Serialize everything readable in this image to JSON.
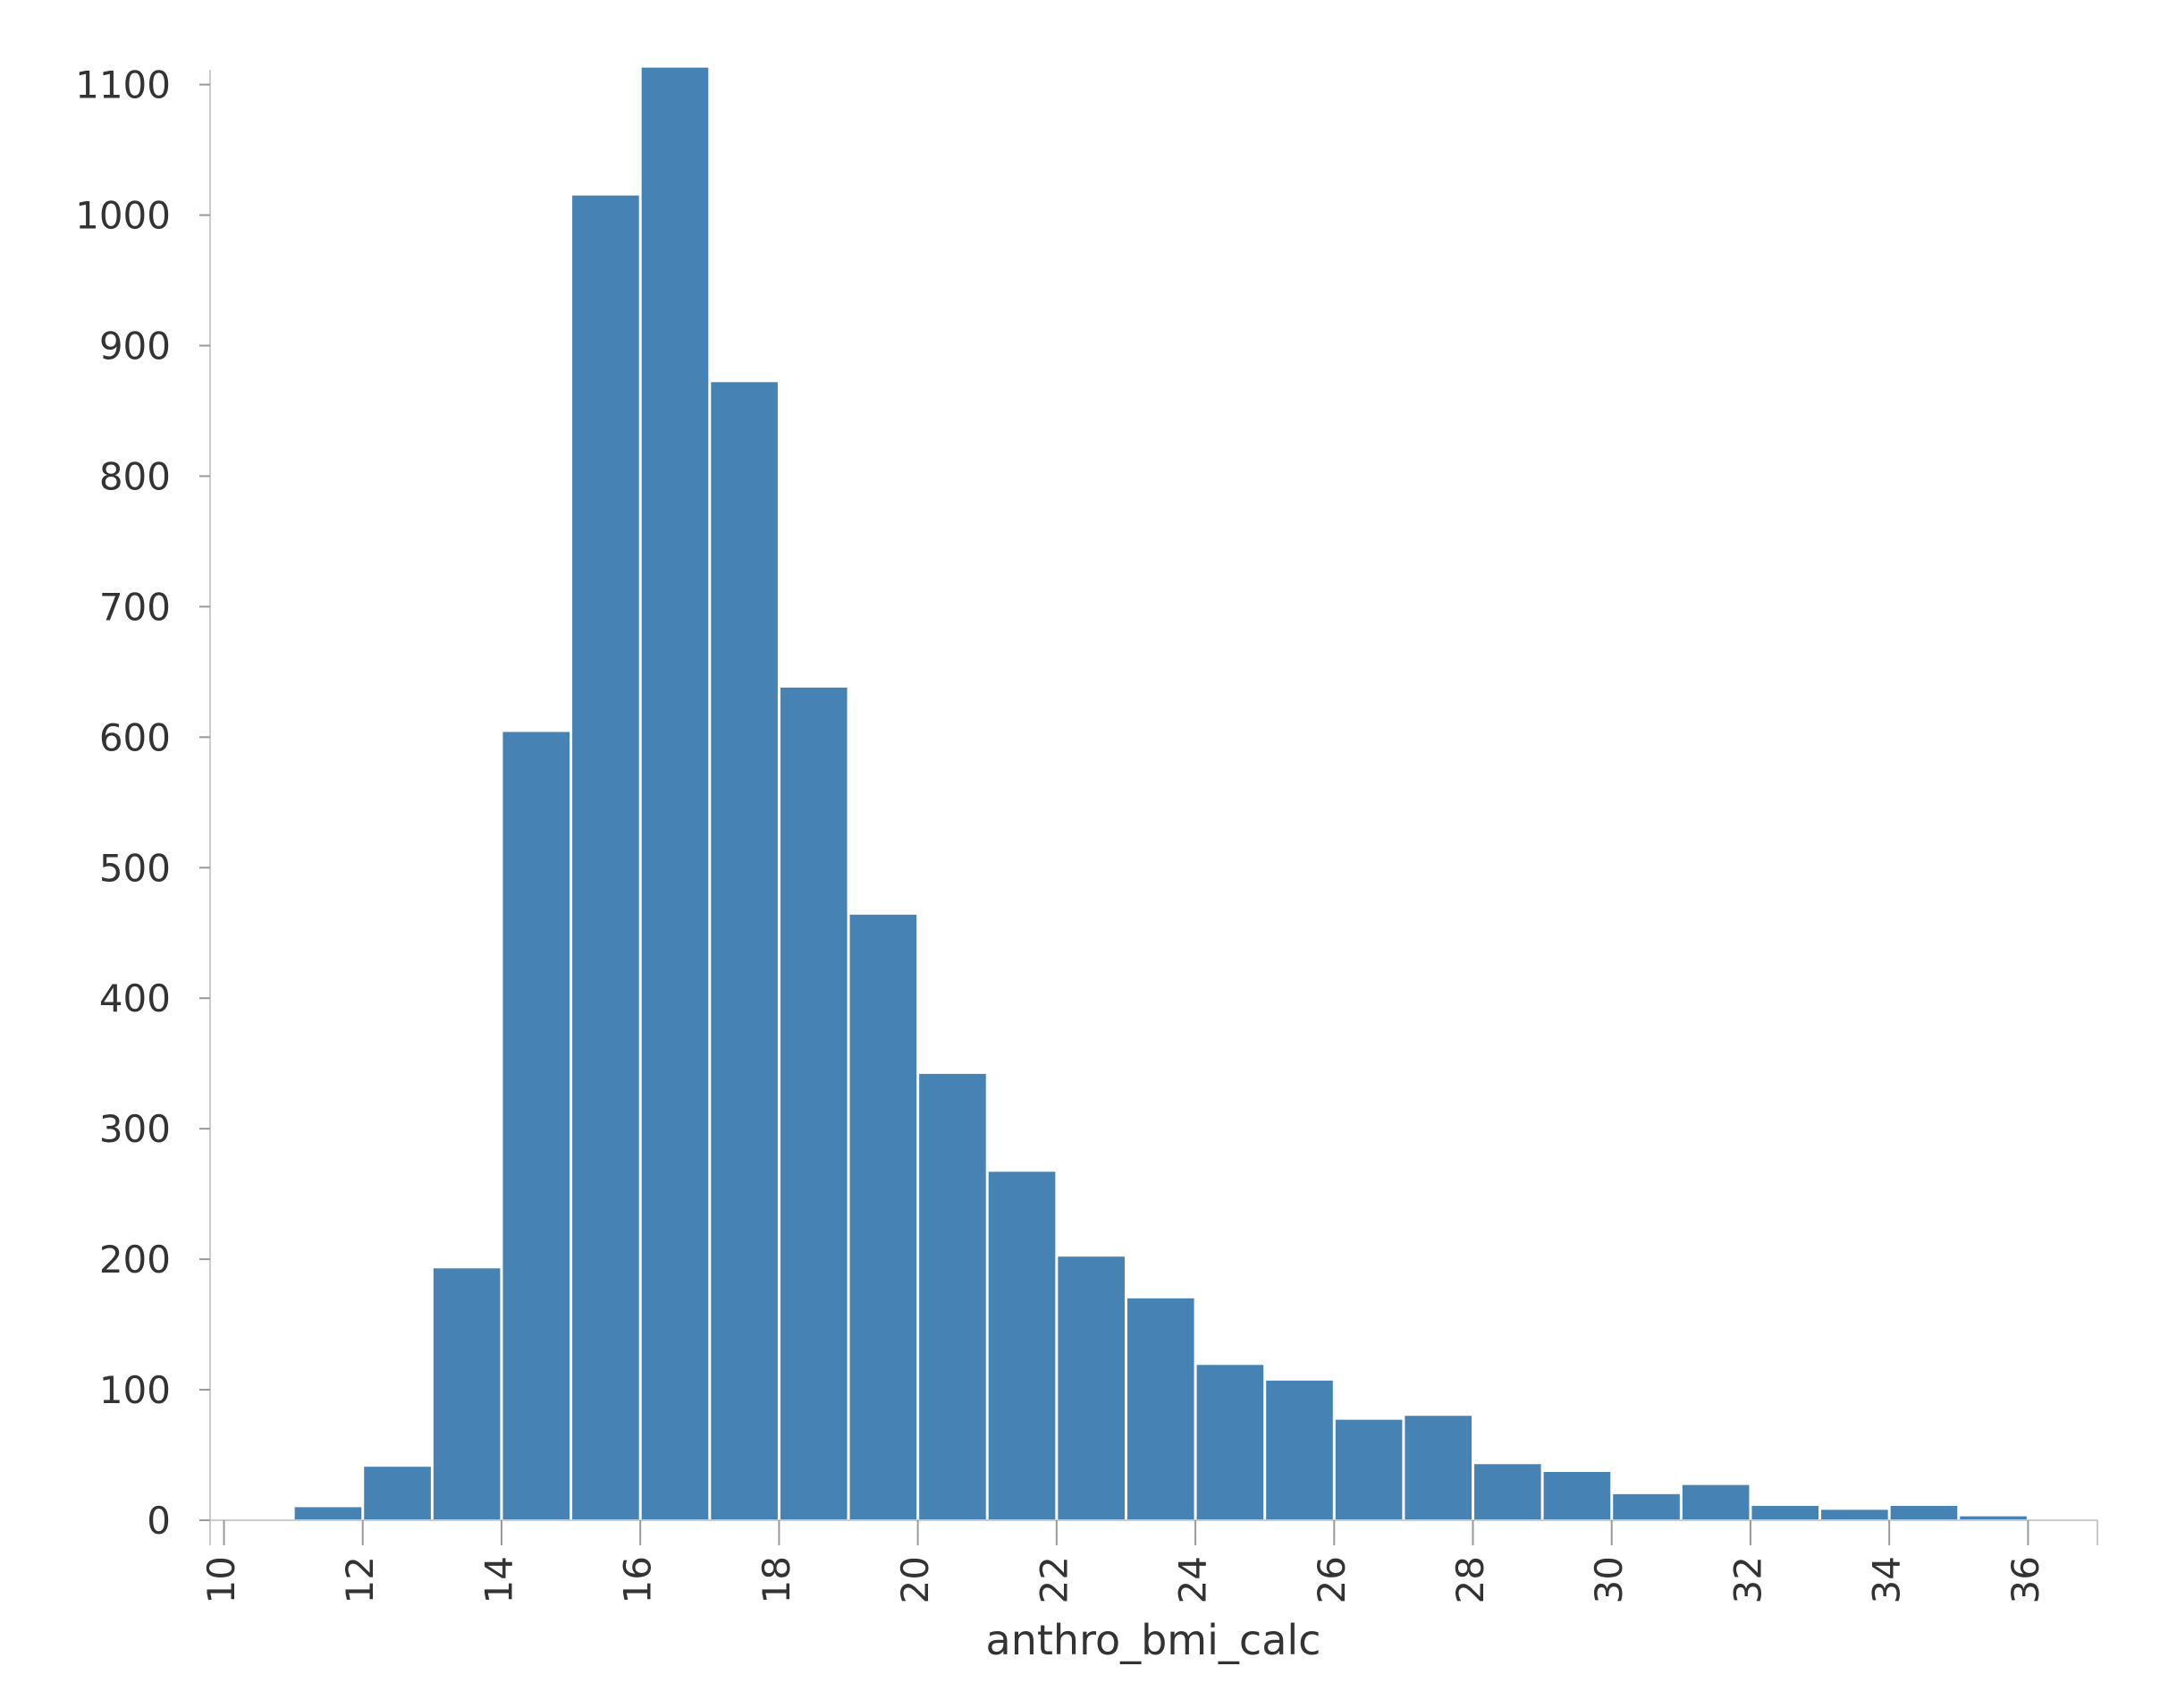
{
  "chart_data": {
    "type": "bar",
    "subtype": "histogram",
    "xlabel": "anthro_bmi_calc",
    "ylabel": "",
    "xlim": [
      9.8,
      37
    ],
    "ylim": [
      0,
      1110
    ],
    "x_ticks": [
      10,
      12,
      14,
      16,
      18,
      20,
      22,
      24,
      26,
      28,
      30,
      32,
      34,
      36
    ],
    "y_ticks": [
      0,
      100,
      200,
      300,
      400,
      500,
      600,
      700,
      800,
      900,
      1000,
      1100
    ],
    "grid": false,
    "bar_color": "#4682b4",
    "bins": [
      {
        "x0": 11,
        "x1": 12,
        "value": 10
      },
      {
        "x0": 12,
        "x1": 13,
        "value": 41
      },
      {
        "x0": 13,
        "x1": 14,
        "value": 193
      },
      {
        "x0": 14,
        "x1": 15,
        "value": 604
      },
      {
        "x0": 15,
        "x1": 16,
        "value": 1015
      },
      {
        "x0": 16,
        "x1": 17,
        "value": 1113
      },
      {
        "x0": 17,
        "x1": 18,
        "value": 872
      },
      {
        "x0": 18,
        "x1": 19,
        "value": 638
      },
      {
        "x0": 19,
        "x1": 20,
        "value": 464
      },
      {
        "x0": 20,
        "x1": 21,
        "value": 342
      },
      {
        "x0": 21,
        "x1": 22,
        "value": 267
      },
      {
        "x0": 22,
        "x1": 23,
        "value": 202
      },
      {
        "x0": 23,
        "x1": 24,
        "value": 170
      },
      {
        "x0": 24,
        "x1": 25,
        "value": 119
      },
      {
        "x0": 25,
        "x1": 26,
        "value": 107
      },
      {
        "x0": 26,
        "x1": 27,
        "value": 77
      },
      {
        "x0": 27,
        "x1": 28,
        "value": 80
      },
      {
        "x0": 28,
        "x1": 29,
        "value": 43
      },
      {
        "x0": 29,
        "x1": 30,
        "value": 37
      },
      {
        "x0": 30,
        "x1": 31,
        "value": 20
      },
      {
        "x0": 31,
        "x1": 32,
        "value": 27
      },
      {
        "x0": 32,
        "x1": 33,
        "value": 11
      },
      {
        "x0": 33,
        "x1": 34,
        "value": 8
      },
      {
        "x0": 34,
        "x1": 35,
        "value": 11
      },
      {
        "x0": 35,
        "x1": 36,
        "value": 3
      }
    ]
  }
}
